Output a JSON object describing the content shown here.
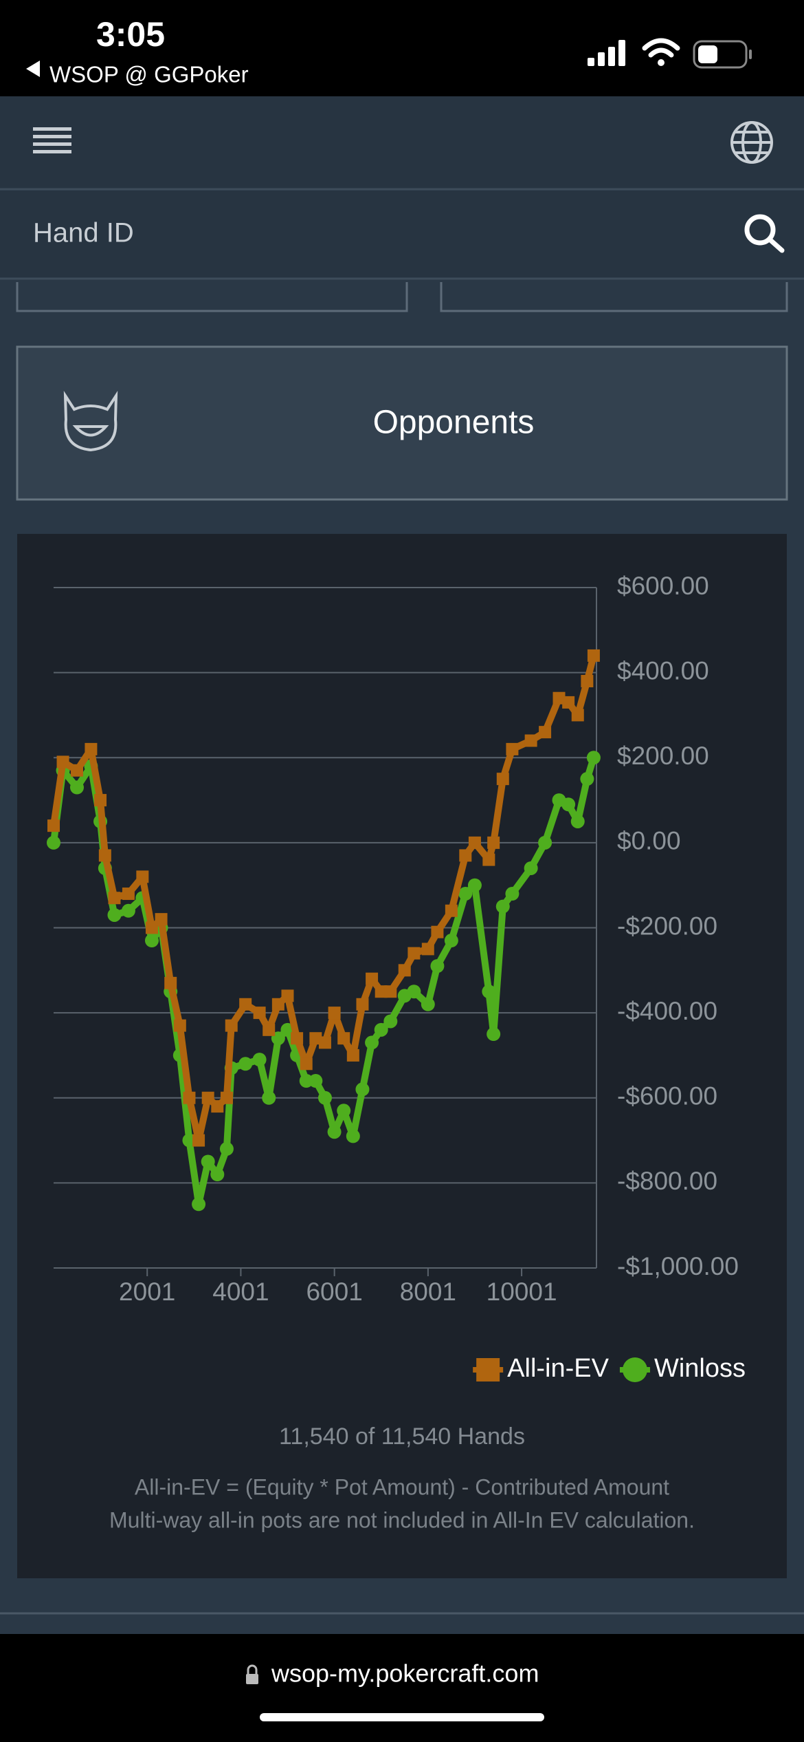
{
  "status_bar": {
    "time": "3:05",
    "back_app": "WSOP @ GGPoker"
  },
  "nav": {
    "search_placeholder": "Hand ID"
  },
  "opponents_button": {
    "label": "Opponents"
  },
  "chart_data": {
    "type": "line",
    "x": [
      1,
      200,
      500,
      800,
      1000,
      1100,
      1300,
      1600,
      1900,
      2100,
      2300,
      2500,
      2700,
      2900,
      3100,
      3300,
      3500,
      3700,
      3800,
      4100,
      4400,
      4600,
      4800,
      5000,
      5200,
      5400,
      5600,
      5800,
      6000,
      6200,
      6400,
      6600,
      6800,
      7000,
      7200,
      7500,
      7700,
      8000,
      8200,
      8500,
      8800,
      9000,
      9300,
      9400,
      9600,
      9800,
      10200,
      10500,
      10800,
      11000,
      11200,
      11400,
      11540
    ],
    "series": [
      {
        "name": "All-in-EV",
        "color": "#b0650f",
        "values": [
          40,
          190,
          170,
          220,
          100,
          -30,
          -130,
          -120,
          -80,
          -200,
          -180,
          -330,
          -430,
          -600,
          -700,
          -600,
          -620,
          -600,
          -430,
          -380,
          -400,
          -440,
          -380,
          -360,
          -460,
          -520,
          -460,
          -470,
          -400,
          -460,
          -500,
          -380,
          -320,
          -350,
          -350,
          -300,
          -260,
          -250,
          -210,
          -160,
          -30,
          0,
          -40,
          0,
          150,
          220,
          240,
          260,
          340,
          330,
          300,
          380,
          440
        ]
      },
      {
        "name": "Winloss",
        "color": "#4fae1e",
        "values": [
          0,
          170,
          130,
          180,
          50,
          -60,
          -170,
          -160,
          -130,
          -230,
          -200,
          -350,
          -500,
          -700,
          -850,
          -750,
          -780,
          -720,
          -530,
          -520,
          -510,
          -600,
          -460,
          -440,
          -500,
          -560,
          -560,
          -600,
          -680,
          -630,
          -690,
          -580,
          -470,
          -440,
          -420,
          -360,
          -350,
          -380,
          -290,
          -230,
          -120,
          -100,
          -350,
          -450,
          -150,
          -120,
          -60,
          0,
          100,
          90,
          50,
          150,
          200
        ]
      }
    ],
    "xlim": [
      1,
      11600
    ],
    "xticks": [
      2001,
      4001,
      6001,
      8001,
      10001
    ],
    "ylim": [
      -1000,
      600
    ],
    "yticks": [
      {
        "value": 600,
        "label": "$600.00"
      },
      {
        "value": 400,
        "label": "$400.00"
      },
      {
        "value": 200,
        "label": "$200.00"
      },
      {
        "value": 0,
        "label": "$0.00"
      },
      {
        "value": -200,
        "label": "-$200.00"
      },
      {
        "value": -400,
        "label": "-$400.00"
      },
      {
        "value": -600,
        "label": "-$600.00"
      },
      {
        "value": -800,
        "label": "-$800.00"
      },
      {
        "value": -1000,
        "label": "-$1,000.00"
      }
    ],
    "grid": true,
    "legend": "bottom-right"
  },
  "hands_count": "11,540 of 11,540 Hands",
  "notes": [
    "All-in-EV = (Equity * Pot Amount) - Contributed Amount",
    "Multi-way all-in pots are not included in All-In EV calculation."
  ],
  "url": "wsop-my.pokercraft.com"
}
